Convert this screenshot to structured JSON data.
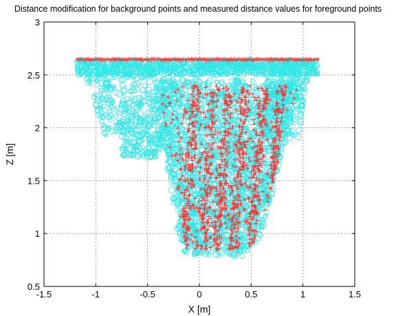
{
  "chart_data": {
    "type": "scatter",
    "title": "Distance modification for background points and measured distance values for foreground points",
    "xlabel": "X [m]",
    "ylabel": "Z [m]",
    "xlim": [
      -1.5,
      1.5
    ],
    "ylim": [
      0.5,
      3
    ],
    "xticks": [
      -1.5,
      -1,
      -0.5,
      0,
      0.5,
      1,
      1.5
    ],
    "xtick_labels": [
      "-1.5",
      "-1",
      "-0.5",
      "0",
      "0.5",
      "1",
      "1.5"
    ],
    "yticks": [
      0.5,
      1,
      1.5,
      2,
      2.5,
      3
    ],
    "ytick_labels": [
      "0.5",
      "1",
      "1.5",
      "2",
      "2.5",
      "3"
    ],
    "grid": true,
    "colors": {
      "cyan_series": "#2ee6e6",
      "red_series": "#ff3030"
    },
    "series": [
      {
        "marker": "circle",
        "color": "#2ee6e6",
        "regions": [
          {
            "x": [
              -1.18,
              1.15
            ],
            "z": [
              2.5,
              2.64
            ]
          },
          {
            "x": [
              -0.15,
              0.65
            ],
            "z": [
              0.8,
              2.45
            ]
          },
          {
            "x": [
              -1.1,
              -0.35
            ],
            "z": [
              1.72,
              2.5
            ]
          },
          {
            "x": [
              0.6,
              1.05
            ],
            "z": [
              1.9,
              2.5
            ]
          }
        ]
      },
      {
        "marker": "plus",
        "color": "#ff3030",
        "regions": [
          {
            "x": [
              -1.18,
              1.15
            ],
            "z": [
              2.64,
              2.65
            ]
          },
          {
            "x": [
              -0.2,
              0.95
            ],
            "z": [
              0.85,
              2.4
            ]
          }
        ]
      }
    ]
  }
}
